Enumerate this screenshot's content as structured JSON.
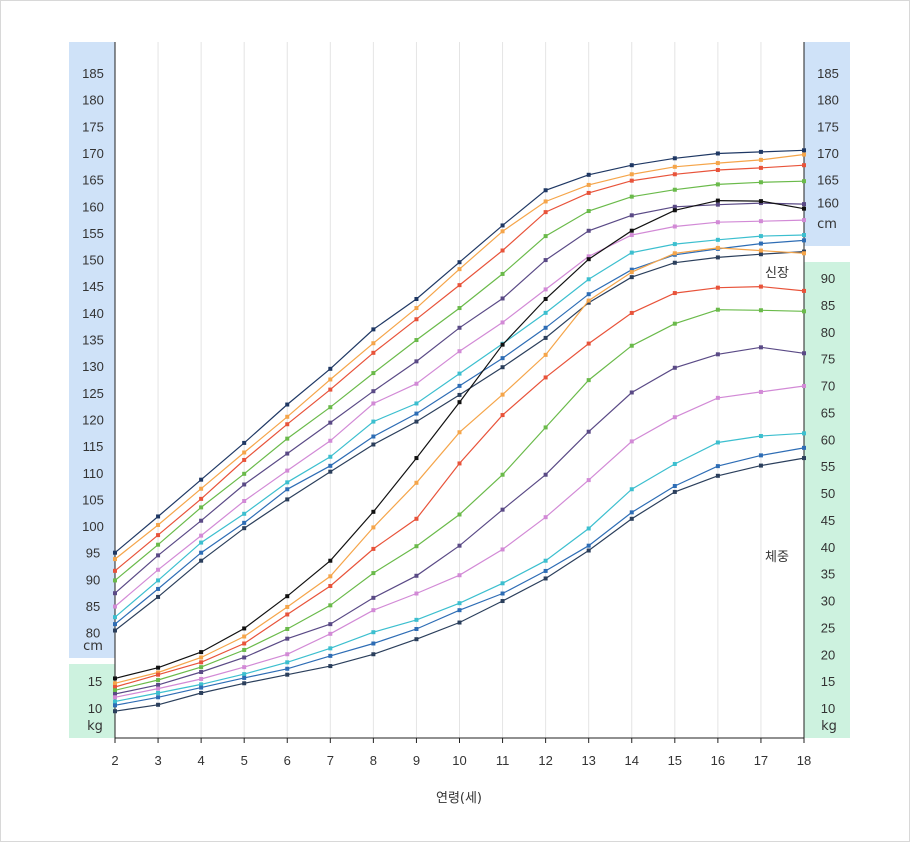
{
  "chart_data": {
    "type": "line",
    "xlabel": "연령(세)",
    "x": [
      2,
      3,
      4,
      5,
      6,
      7,
      8,
      9,
      10,
      11,
      12,
      13,
      14,
      15,
      16,
      17,
      18
    ],
    "height": {
      "label": "신장",
      "unit": "cm",
      "ticks": [
        80,
        85,
        90,
        95,
        100,
        105,
        110,
        115,
        120,
        125,
        130,
        135,
        140,
        145,
        150,
        155,
        160,
        165,
        170,
        175,
        180,
        185
      ],
      "right_ticks": [
        160,
        165,
        170,
        175,
        180,
        185
      ],
      "series": [
        {
          "color": "#1f3864",
          "values": [
            95.0,
            101.8,
            108.7,
            115.6,
            122.8,
            129.5,
            136.9,
            142.6,
            149.5,
            156.4,
            163.0,
            165.9,
            167.7,
            169.0,
            169.9,
            170.2,
            170.5
          ]
        },
        {
          "color": "#f5a54a",
          "values": [
            93.8,
            100.2,
            107.0,
            113.8,
            120.5,
            127.5,
            134.3,
            140.9,
            148.2,
            155.3,
            160.9,
            164.0,
            166.0,
            167.4,
            168.1,
            168.7,
            169.7
          ]
        },
        {
          "color": "#e8533a",
          "values": [
            91.6,
            98.3,
            105.1,
            112.4,
            119.1,
            125.6,
            132.5,
            138.8,
            145.2,
            151.7,
            158.9,
            162.5,
            164.8,
            166.0,
            166.8,
            167.2,
            167.7
          ]
        },
        {
          "color": "#6aba4a",
          "values": [
            89.8,
            96.5,
            103.5,
            109.8,
            116.4,
            122.3,
            128.7,
            134.9,
            140.9,
            147.3,
            154.4,
            159.1,
            161.8,
            163.1,
            164.1,
            164.5,
            164.7
          ]
        },
        {
          "color": "#5a4a86",
          "values": [
            87.4,
            94.5,
            101.0,
            107.8,
            113.6,
            119.4,
            125.3,
            130.9,
            137.2,
            142.7,
            149.9,
            155.4,
            158.3,
            159.9,
            160.3,
            160.6,
            160.4
          ]
        },
        {
          "color": "#d28ad6",
          "values": [
            84.9,
            91.8,
            98.2,
            104.7,
            110.4,
            116.0,
            123.0,
            126.7,
            132.8,
            138.2,
            144.4,
            150.6,
            154.6,
            156.2,
            157.0,
            157.2,
            157.4
          ]
        },
        {
          "color": "#3cbfcf",
          "values": [
            82.9,
            89.8,
            96.9,
            102.3,
            108.2,
            113.0,
            119.6,
            123.0,
            128.6,
            134.2,
            140.0,
            146.3,
            151.3,
            152.9,
            153.7,
            154.4,
            154.6
          ]
        },
        {
          "color": "#2e6db5",
          "values": [
            81.6,
            88.2,
            95.0,
            100.6,
            106.9,
            111.3,
            116.8,
            121.1,
            126.3,
            131.5,
            137.2,
            143.5,
            148.1,
            150.9,
            152.0,
            153.0,
            153.6
          ]
        },
        {
          "color": "#2b3f5c",
          "values": [
            80.4,
            86.7,
            93.5,
            99.6,
            105.0,
            110.2,
            115.3,
            119.6,
            124.6,
            129.8,
            135.3,
            141.9,
            146.7,
            149.4,
            150.4,
            151.0,
            151.5
          ]
        }
      ]
    },
    "weight": {
      "label": "체중",
      "unit": "kg",
      "left_ticks": [
        10,
        15
      ],
      "right_ticks": [
        10,
        15,
        20,
        25,
        30,
        35,
        40,
        45,
        50,
        55,
        60,
        65,
        70,
        75,
        80,
        85,
        90
      ],
      "series": [
        {
          "color": "#111111",
          "values": [
            15.5,
            17.5,
            20.4,
            24.8,
            30.8,
            37.4,
            46.5,
            56.5,
            66.9,
            77.6,
            86.1,
            93.5,
            98.8,
            102.6,
            104.4,
            104.3,
            102.9
          ]
        },
        {
          "color": "#f5a54a",
          "values": [
            14.6,
            16.6,
            19.4,
            23.3,
            28.8,
            34.5,
            43.6,
            51.9,
            61.3,
            68.3,
            75.7,
            85.8,
            91.1,
            94.6,
            95.6,
            95.1,
            94.6
          ]
        },
        {
          "color": "#e8533a",
          "values": [
            13.9,
            16.2,
            18.5,
            22.0,
            27.4,
            32.7,
            39.6,
            45.2,
            55.5,
            64.5,
            71.5,
            77.8,
            83.5,
            87.2,
            88.2,
            88.4,
            87.6
          ]
        },
        {
          "color": "#6aba4a",
          "values": [
            13.3,
            15.2,
            17.6,
            20.8,
            24.7,
            29.1,
            35.1,
            40.1,
            46.0,
            53.4,
            62.2,
            71.0,
            77.4,
            81.5,
            84.1,
            84.0,
            83.8
          ]
        },
        {
          "color": "#5a4a86",
          "values": [
            12.6,
            14.3,
            16.7,
            19.4,
            22.9,
            25.6,
            30.5,
            34.6,
            40.2,
            46.9,
            53.4,
            61.4,
            68.7,
            73.3,
            75.8,
            77.1,
            76.0
          ]
        },
        {
          "color": "#d28ad6",
          "values": [
            12.0,
            13.6,
            15.4,
            17.6,
            20.0,
            23.8,
            28.2,
            31.3,
            34.7,
            39.5,
            45.5,
            52.4,
            59.6,
            64.1,
            67.7,
            68.8,
            69.9
          ]
        },
        {
          "color": "#3cbfcf",
          "values": [
            11.2,
            12.8,
            14.4,
            16.3,
            18.5,
            21.1,
            24.1,
            26.4,
            29.5,
            33.2,
            37.4,
            43.4,
            50.7,
            55.4,
            59.4,
            60.6,
            61.1
          ]
        },
        {
          "color": "#2e6db5",
          "values": [
            10.5,
            12.0,
            13.8,
            15.6,
            17.3,
            19.7,
            22.0,
            24.7,
            28.2,
            31.3,
            35.5,
            40.2,
            46.4,
            51.3,
            55.0,
            57.0,
            58.4
          ]
        },
        {
          "color": "#2b3f5c",
          "values": [
            9.4,
            10.6,
            12.8,
            14.6,
            16.2,
            17.8,
            20.0,
            22.8,
            25.9,
            29.9,
            34.1,
            39.3,
            45.2,
            50.2,
            53.2,
            55.1,
            56.5
          ]
        }
      ]
    },
    "grid": true,
    "marker": "square"
  }
}
